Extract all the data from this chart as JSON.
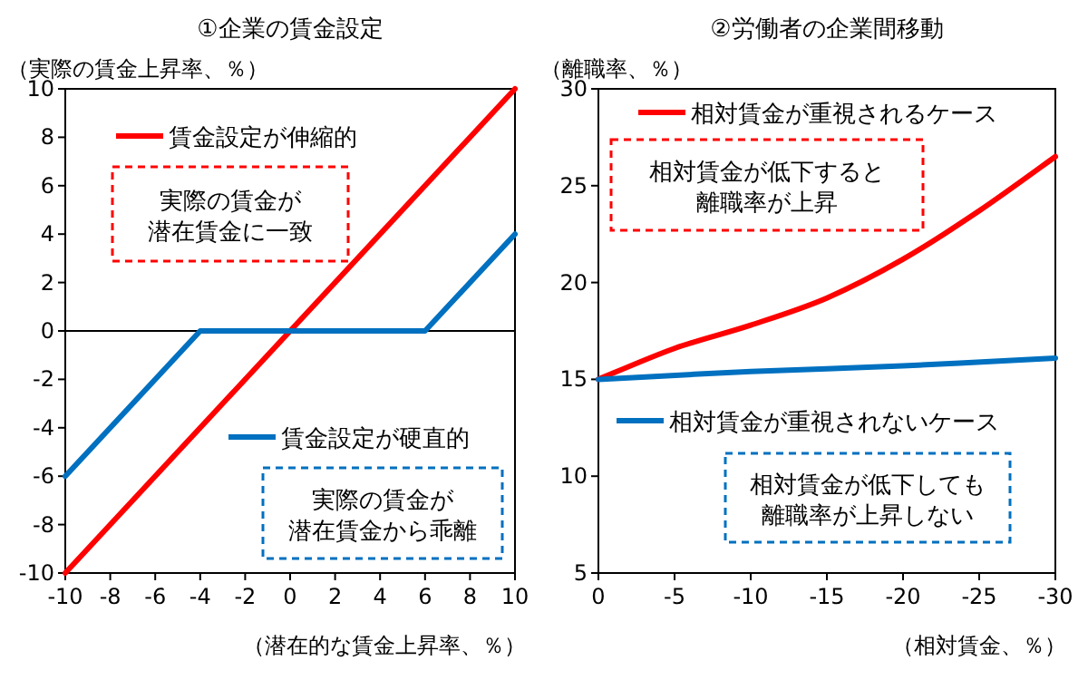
{
  "chart_data": [
    {
      "type": "line",
      "title": "①企業の賃金設定",
      "ylabel": "（実際の賃金上昇率、％）",
      "xlabel": "（潜在的な賃金上昇率、％）",
      "xlim": [
        -10,
        10
      ],
      "xticks": [
        -10,
        -8,
        -6,
        -4,
        -2,
        0,
        2,
        4,
        6,
        8,
        10
      ],
      "ylim": [
        -10,
        10
      ],
      "yticks": [
        -10,
        -8,
        -6,
        -4,
        -2,
        0,
        2,
        4,
        6,
        8,
        10
      ],
      "legend": "top left",
      "marker": "none",
      "line_style": "solid",
      "series": [
        {
          "name": "賃金設定が伸縮的",
          "color": "#ff0000",
          "x": [
            -10,
            10
          ],
          "values": [
            -10,
            10
          ]
        },
        {
          "name": "賃金設定が硬直的",
          "color": "#0070c0",
          "x": [
            -10,
            -4,
            6,
            10
          ],
          "values": [
            -6,
            0,
            0,
            4
          ]
        }
      ],
      "ref_lines": [
        {
          "axis": "y",
          "value": 0,
          "color": "#000000"
        }
      ],
      "annotations": [
        "実際の賃金が潜在賃金に一致",
        "実際の賃金が潜在賃金から乖離"
      ]
    },
    {
      "type": "line",
      "title": "②労働者の企業間移動",
      "ylabel": "（離職率、％）",
      "xlabel": "（相対賃金、％）",
      "xlim": [
        0,
        -30
      ],
      "xticks": [
        0,
        -5,
        -10,
        -15,
        -20,
        -25,
        -30
      ],
      "ylim": [
        5,
        30
      ],
      "yticks": [
        5,
        10,
        15,
        20,
        25,
        30
      ],
      "legend": "top right",
      "marker": "none",
      "line_style": "solid",
      "series": [
        {
          "name": "相対賃金が重視されるケース",
          "color": "#ff0000",
          "x": [
            0,
            -5,
            -10,
            -15,
            -20,
            -25,
            -30
          ],
          "values": [
            15,
            16.6,
            17.8,
            19.2,
            21.2,
            23.7,
            26.5
          ]
        },
        {
          "name": "相対賃金が重視されないケース",
          "color": "#0070c0",
          "x": [
            0,
            -10,
            -20,
            -30
          ],
          "values": [
            15,
            15.4,
            15.7,
            16.1
          ]
        }
      ],
      "annotations": [
        "相対賃金が低下すると離職率が上昇",
        "相対賃金が低下しても離職率が上昇しない"
      ]
    }
  ]
}
